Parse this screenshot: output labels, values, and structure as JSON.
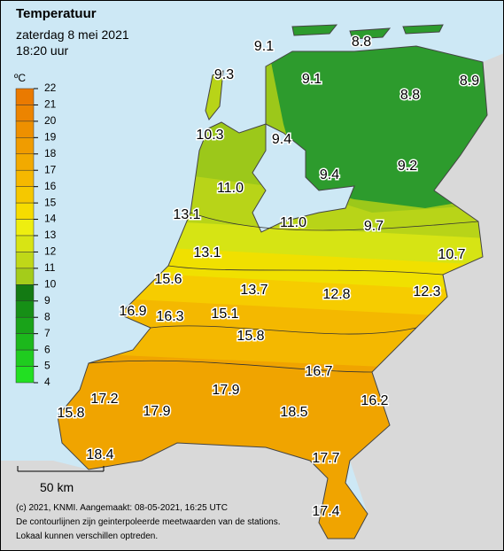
{
  "header": {
    "title": "Temperatuur",
    "date": "zaterdag 8 mei 2021",
    "time": "18:20 uur"
  },
  "legend": {
    "unit": "ºC",
    "ticks": [
      22,
      21,
      20,
      19,
      18,
      17,
      16,
      15,
      14,
      13,
      12,
      11,
      10,
      9,
      8,
      7,
      6,
      5,
      4
    ]
  },
  "stations": [
    "9.1",
    "8.8",
    "9.3",
    "9.1",
    "8.9",
    "8.8",
    "10.3",
    "9.4",
    "9.4",
    "9.2",
    "11.0",
    "13.1",
    "11.0",
    "9.7",
    "10.7",
    "13.1",
    "15.6",
    "13.7",
    "12.8",
    "12.3",
    "16.9",
    "16.3",
    "15.1",
    "15.8",
    "16.7",
    "17.2",
    "17.9",
    "16.2",
    "15.8",
    "17.9",
    "18.5",
    "18.4",
    "17.7",
    "17.4"
  ],
  "scale": "50 km",
  "footer": [
    "(c) 2021, KNMI. Aangemaakt: 08-05-2021, 16:25 UTC",
    "De contourlijnen zijn geinterpoleerde meetwaarden van de stations.",
    "Lokaal kunnen verschillen optreden."
  ]
}
